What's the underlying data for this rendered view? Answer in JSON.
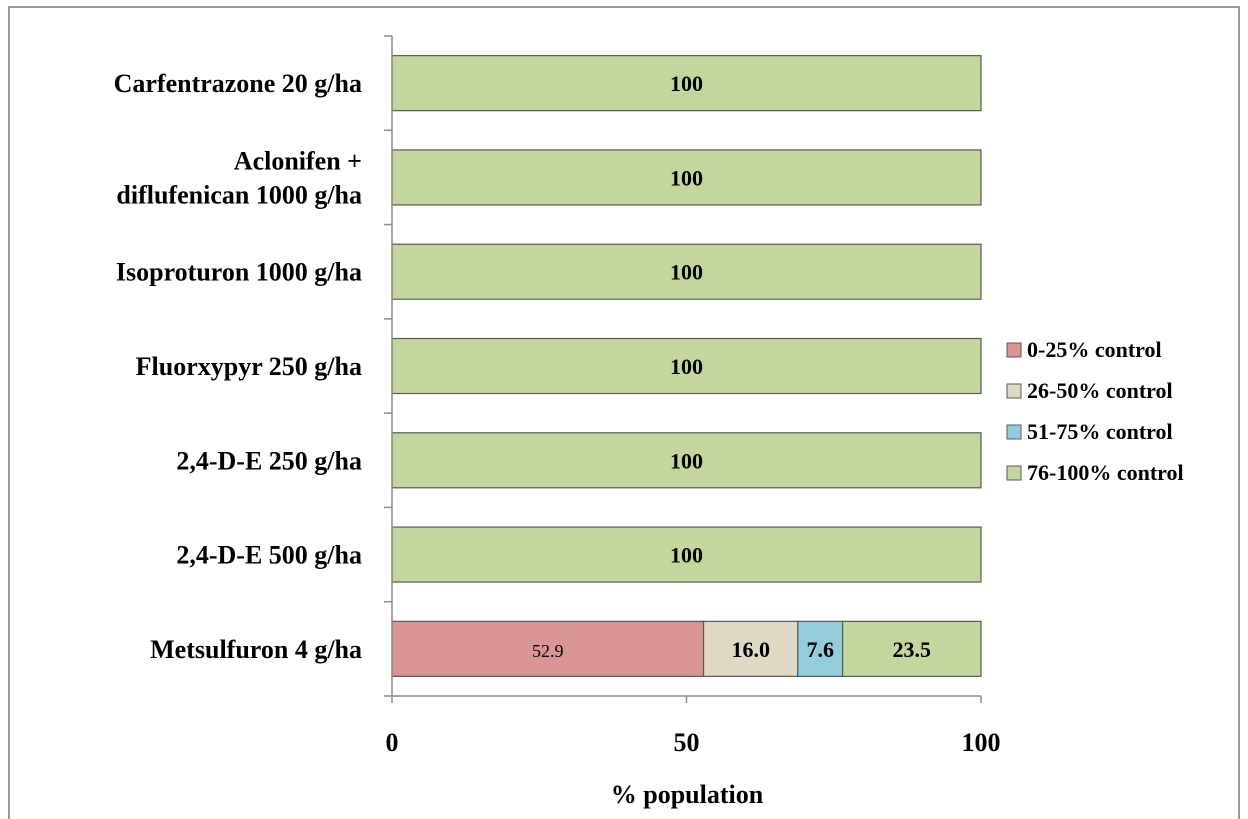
{
  "colors": {
    "0-25": "#d99594",
    "26-50": "#ddd9c3",
    "51-75": "#93cddd",
    "76-100": "#c3d69b",
    "border": "#595959"
  },
  "chart_data": {
    "type": "bar",
    "orientation": "horizontal",
    "stacked": true,
    "title": "",
    "xlabel": "% population",
    "ylabel": "",
    "xlim": [
      0,
      100
    ],
    "x_ticks": [
      "0",
      "50",
      "100"
    ],
    "grid": false,
    "legend_position": "right",
    "categories": [
      [
        "Carfentrazone 20 g/ha"
      ],
      [
        "Aclonifen +",
        "diflufenican 1000 g/ha"
      ],
      [
        "Isoproturon 1000 g/ha"
      ],
      [
        "Fluorxypyr 250 g/ha"
      ],
      [
        "2,4-D-E 250 g/ha"
      ],
      [
        "2,4-D-E  500 g/ha"
      ],
      [
        "Metsulfuron 4 g/ha"
      ]
    ],
    "series": [
      {
        "name": "0-25% control",
        "color_key": "0-25",
        "values": [
          0,
          0,
          0,
          0,
          0,
          0,
          52.9
        ],
        "labels": [
          "",
          "",
          "",
          "",
          "",
          "",
          "52.9"
        ]
      },
      {
        "name": "26-50% control",
        "color_key": "26-50",
        "values": [
          0,
          0,
          0,
          0,
          0,
          0,
          16.0
        ],
        "labels": [
          "",
          "",
          "",
          "",
          "",
          "",
          "16.0"
        ]
      },
      {
        "name": "51-75% control",
        "color_key": "51-75",
        "values": [
          0,
          0,
          0,
          0,
          0,
          0,
          7.6
        ],
        "labels": [
          "",
          "",
          "",
          "",
          "",
          "",
          "7.6"
        ]
      },
      {
        "name": "76-100% control",
        "color_key": "76-100",
        "values": [
          100,
          100,
          100,
          100,
          100,
          100,
          23.5
        ],
        "labels": [
          "100",
          "100",
          "100",
          "100",
          "100",
          "100",
          "23.5"
        ]
      }
    ]
  }
}
